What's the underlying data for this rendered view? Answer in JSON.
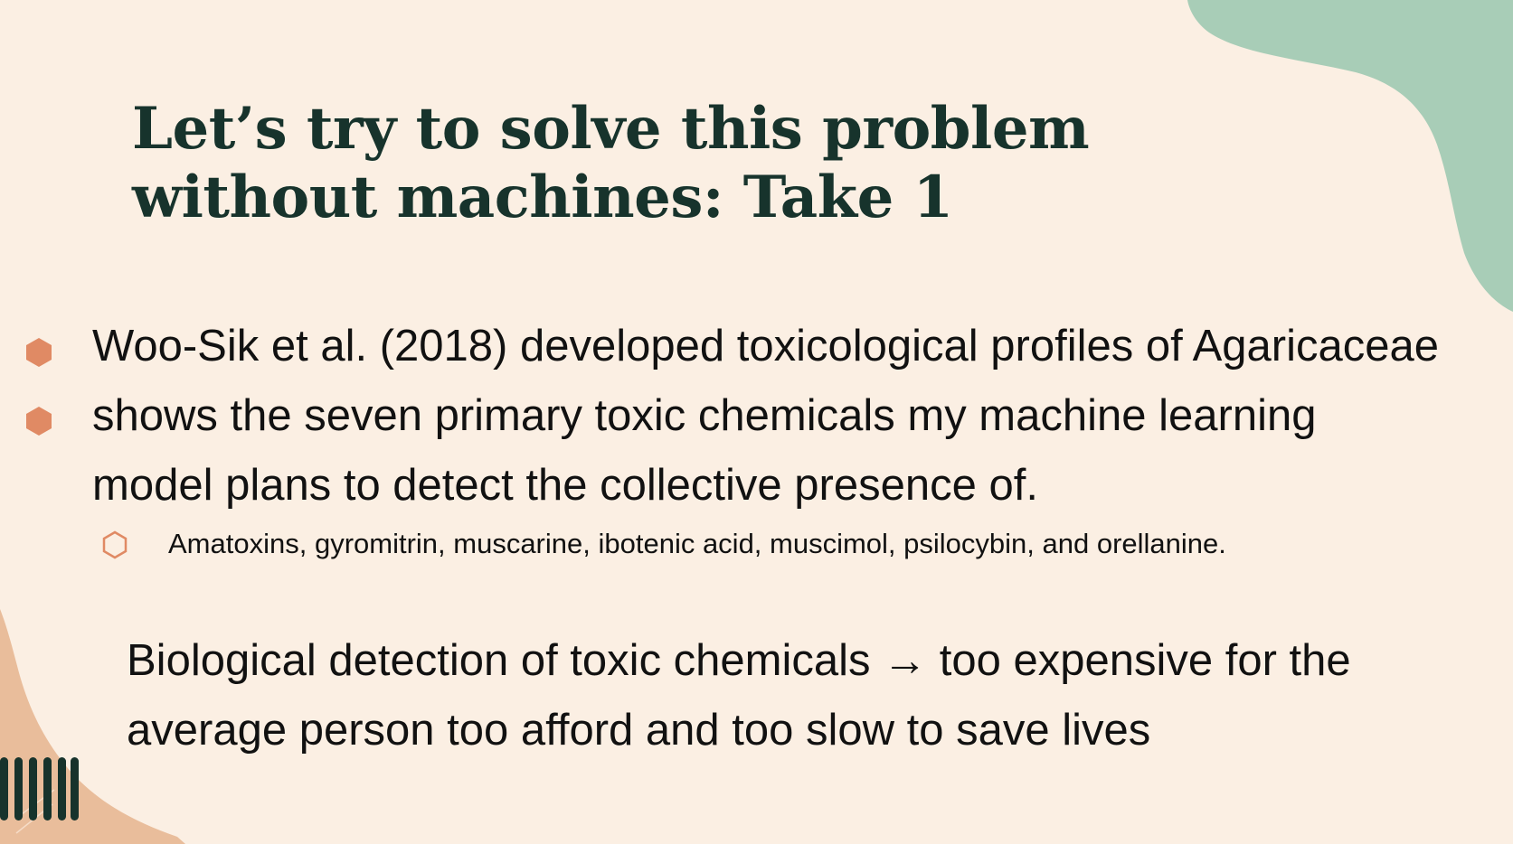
{
  "slide": {
    "title": "Let’s try to solve this problem without machines: Take 1",
    "bullet_text": "Woo-Sik et al. (2018) developed toxicological profiles of Agaricaceae\nshows the seven primary toxic chemicals my machine learning\nmodel plans to detect the collective presence of.",
    "sub_bullet": "Amatoxins, gyromitrin, muscarine, ibotenic acid, muscimol, psilocybin, and orellanine.",
    "conclusion": "Biological detection of toxic chemicals → too expensive for the average person too afford and too slow to save lives"
  },
  "colors": {
    "background": "#fbefe3",
    "title": "#17332c",
    "accent": "#e08a64",
    "teal_blob": "#a8cdb7",
    "peach_blob": "#e9bd9b",
    "stripes": "#17332c"
  }
}
